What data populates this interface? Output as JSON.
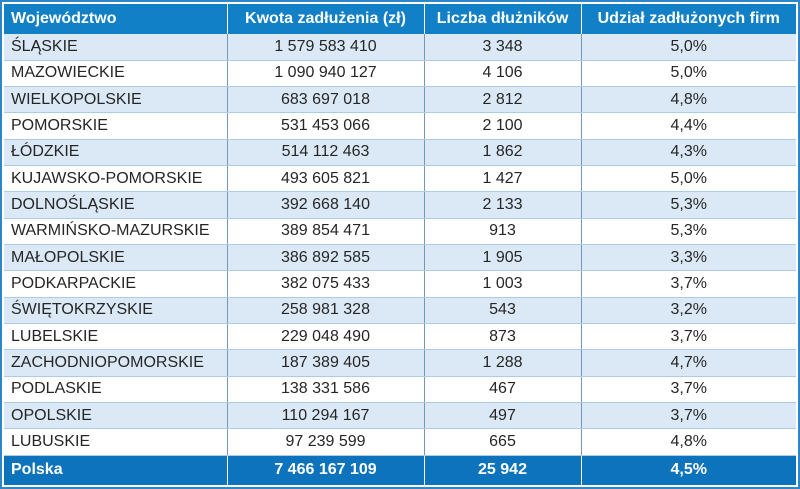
{
  "table": {
    "columns": [
      {
        "label": "Województwo",
        "align": "left"
      },
      {
        "label": "Kwota zadłużenia (zł)",
        "align": "center"
      },
      {
        "label": "Liczba dłużników",
        "align": "center"
      },
      {
        "label": "Udział zadłużonych firm",
        "align": "center"
      }
    ],
    "rows": [
      [
        "ŚLĄSKIE",
        "1 579 583 410",
        "3 348",
        "5,0%"
      ],
      [
        "MAZOWIECKIE",
        "1 090 940 127",
        "4 106",
        "5,0%"
      ],
      [
        "WIELKOPOLSKIE",
        "683 697 018",
        "2 812",
        "4,8%"
      ],
      [
        "POMORSKIE",
        "531 453 066",
        "2 100",
        "4,4%"
      ],
      [
        "ŁÓDZKIE",
        "514 112 463",
        "1 862",
        "4,3%"
      ],
      [
        "KUJAWSKO-POMORSKIE",
        "493 605 821",
        "1 427",
        "5,0%"
      ],
      [
        "DOLNOŚLĄSKIE",
        "392 668 140",
        "2 133",
        "5,3%"
      ],
      [
        "WARMIŃSKO-MAZURSKIE",
        "389 854 471",
        "913",
        "5,3%"
      ],
      [
        "MAŁOPOLSKIE",
        "386 892 585",
        "1 905",
        "3,3%"
      ],
      [
        "PODKARPACKIE",
        "382 075 433",
        "1 003",
        "3,7%"
      ],
      [
        "ŚWIĘTOKRZYSKIE",
        "258 981 328",
        "543",
        "3,2%"
      ],
      [
        "LUBELSKIE",
        "229 048 490",
        "873",
        "3,7%"
      ],
      [
        "ZACHODNIOPOMORSKIE",
        "187 389 405",
        "1 288",
        "4,7%"
      ],
      [
        "PODLASKIE",
        "138 331 586",
        "467",
        "3,7%"
      ],
      [
        "OPOLSKIE",
        "110 294 167",
        "497",
        "3,7%"
      ],
      [
        "LUBUSKIE",
        "97 239 599",
        "665",
        "4,8%"
      ]
    ],
    "footer": [
      "Polska",
      "7 466 167 109",
      "25 942",
      "4,5%"
    ]
  },
  "chart_data": {
    "type": "table",
    "title": "",
    "columns": [
      "Województwo",
      "Kwota zadłużenia (zł)",
      "Liczba dłużników",
      "Udział zadłużonych firm"
    ],
    "rows": [
      {
        "wojewodztwo": "ŚLĄSKIE",
        "kwota_zadluzenia_zl": 1579583410,
        "liczba_dluznikow": 3348,
        "udzial_zadluzonych_firm_pct": 5.0
      },
      {
        "wojewodztwo": "MAZOWIECKIE",
        "kwota_zadluzenia_zl": 1090940127,
        "liczba_dluznikow": 4106,
        "udzial_zadluzonych_firm_pct": 5.0
      },
      {
        "wojewodztwo": "WIELKOPOLSKIE",
        "kwota_zadluzenia_zl": 683697018,
        "liczba_dluznikow": 2812,
        "udzial_zadluzonych_firm_pct": 4.8
      },
      {
        "wojewodztwo": "POMORSKIE",
        "kwota_zadluzenia_zl": 531453066,
        "liczba_dluznikow": 2100,
        "udzial_zadluzonych_firm_pct": 4.4
      },
      {
        "wojewodztwo": "ŁÓDZKIE",
        "kwota_zadluzenia_zl": 514112463,
        "liczba_dluznikow": 1862,
        "udzial_zadluzonych_firm_pct": 4.3
      },
      {
        "wojewodztwo": "KUJAWSKO-POMORSKIE",
        "kwota_zadluzenia_zl": 493605821,
        "liczba_dluznikow": 1427,
        "udzial_zadluzonych_firm_pct": 5.0
      },
      {
        "wojewodztwo": "DOLNOŚLĄSKIE",
        "kwota_zadluzenia_zl": 392668140,
        "liczba_dluznikow": 2133,
        "udzial_zadluzonych_firm_pct": 5.3
      },
      {
        "wojewodztwo": "WARMIŃSKO-MAZURSKIE",
        "kwota_zadluzenia_zl": 389854471,
        "liczba_dluznikow": 913,
        "udzial_zadluzonych_firm_pct": 5.3
      },
      {
        "wojewodztwo": "MAŁOPOLSKIE",
        "kwota_zadluzenia_zl": 386892585,
        "liczba_dluznikow": 1905,
        "udzial_zadluzonych_firm_pct": 3.3
      },
      {
        "wojewodztwo": "PODKARPACKIE",
        "kwota_zadluzenia_zl": 382075433,
        "liczba_dluznikow": 1003,
        "udzial_zadluzonych_firm_pct": 3.7
      },
      {
        "wojewodztwo": "ŚWIĘTOKRZYSKIE",
        "kwota_zadluzenia_zl": 258981328,
        "liczba_dluznikow": 543,
        "udzial_zadluzonych_firm_pct": 3.2
      },
      {
        "wojewodztwo": "LUBELSKIE",
        "kwota_zadluzenia_zl": 229048490,
        "liczba_dluznikow": 873,
        "udzial_zadluzonych_firm_pct": 3.7
      },
      {
        "wojewodztwo": "ZACHODNIOPOMORSKIE",
        "kwota_zadluzenia_zl": 187389405,
        "liczba_dluznikow": 1288,
        "udzial_zadluzonych_firm_pct": 4.7
      },
      {
        "wojewodztwo": "PODLASKIE",
        "kwota_zadluzenia_zl": 138331586,
        "liczba_dluznikow": 467,
        "udzial_zadluzonych_firm_pct": 3.7
      },
      {
        "wojewodztwo": "OPOLSKIE",
        "kwota_zadluzenia_zl": 110294167,
        "liczba_dluznikow": 497,
        "udzial_zadluzonych_firm_pct": 3.7
      },
      {
        "wojewodztwo": "LUBUSKIE",
        "kwota_zadluzenia_zl": 97239599,
        "liczba_dluznikow": 665,
        "udzial_zadluzonych_firm_pct": 4.8
      }
    ],
    "total_row": {
      "wojewodztwo": "Polska",
      "kwota_zadluzenia_zl": 7466167109,
      "liczba_dluznikow": 25942,
      "udzial_zadluzonych_firm_pct": 4.5
    }
  },
  "colors": {
    "header_bg": "#1180c6",
    "footer_bg": "#0d73bc",
    "row_alt_bg": "#dbe9f6",
    "row_bg": "#ffffff",
    "grid_vertical": "#7796b5",
    "grid_horizontal": "#aecbe5",
    "outer_border": "#2e85c7",
    "text": "#262626",
    "header_text": "#ffffff"
  }
}
